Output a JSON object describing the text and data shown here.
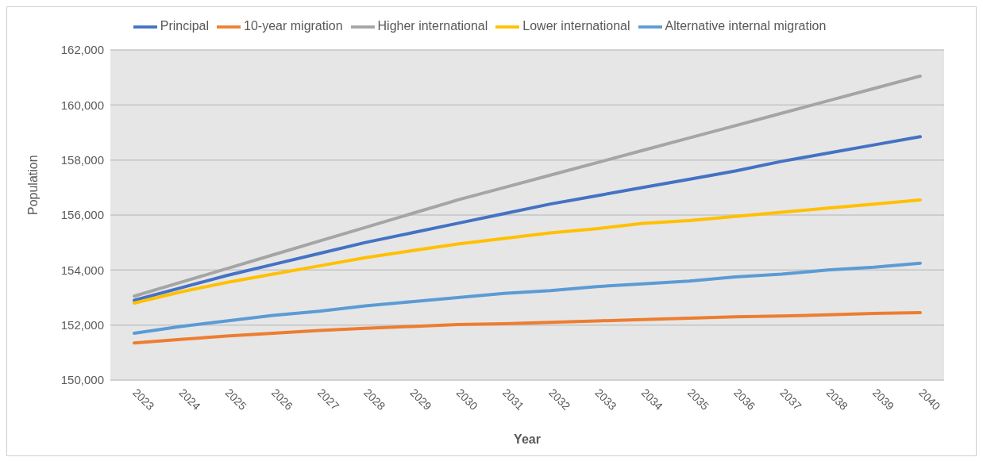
{
  "chart_data": {
    "type": "line",
    "xlabel": "Year",
    "ylabel": "Population",
    "categories": [
      "2023",
      "2024",
      "2025",
      "2026",
      "2027",
      "2028",
      "2029",
      "2030",
      "2031",
      "2032",
      "2033",
      "2034",
      "2035",
      "2036",
      "2037",
      "2038",
      "2039",
      "2040"
    ],
    "series": [
      {
        "name": "Principal",
        "color": "#4472c4",
        "values": [
          152900,
          153350,
          153800,
          154200,
          154600,
          155000,
          155350,
          155700,
          156050,
          156400,
          156700,
          157000,
          157300,
          157600,
          157950,
          158250,
          158550,
          158850
        ]
      },
      {
        "name": "10-year migration",
        "color": "#ed7d31",
        "values": [
          151350,
          151480,
          151600,
          151700,
          151800,
          151880,
          151950,
          152020,
          152050,
          152100,
          152150,
          152200,
          152250,
          152300,
          152330,
          152370,
          152420,
          152450
        ]
      },
      {
        "name": "Higher international",
        "color": "#a5a5a5",
        "values": [
          153050,
          153550,
          154050,
          154550,
          155050,
          155550,
          156050,
          156550,
          157000,
          157450,
          157900,
          158350,
          158800,
          159250,
          159700,
          160150,
          160600,
          161050
        ]
      },
      {
        "name": "Lower international",
        "color": "#ffc000",
        "values": [
          152800,
          153200,
          153550,
          153850,
          154150,
          154450,
          154700,
          154950,
          155150,
          155350,
          155500,
          155700,
          155800,
          155950,
          156100,
          156250,
          156400,
          156550
        ]
      },
      {
        "name": "Alternative internal migration",
        "color": "#5b9bd5",
        "values": [
          151700,
          151950,
          152150,
          152350,
          152500,
          152700,
          152850,
          153000,
          153150,
          153250,
          153400,
          153500,
          153600,
          153750,
          153850,
          154000,
          154100,
          154250
        ]
      }
    ],
    "ylim": [
      150000,
      162000
    ],
    "yticks": [
      {
        "value": 150000,
        "label": "150,000"
      },
      {
        "value": 152000,
        "label": "152,000"
      },
      {
        "value": 154000,
        "label": "154,000"
      },
      {
        "value": 156000,
        "label": "156,000"
      },
      {
        "value": 158000,
        "label": "158,000"
      },
      {
        "value": 160000,
        "label": "160,000"
      },
      {
        "value": 162000,
        "label": "162,000"
      }
    ],
    "grid": "y",
    "legend": "top",
    "marker": "none",
    "line_style": "solid"
  }
}
